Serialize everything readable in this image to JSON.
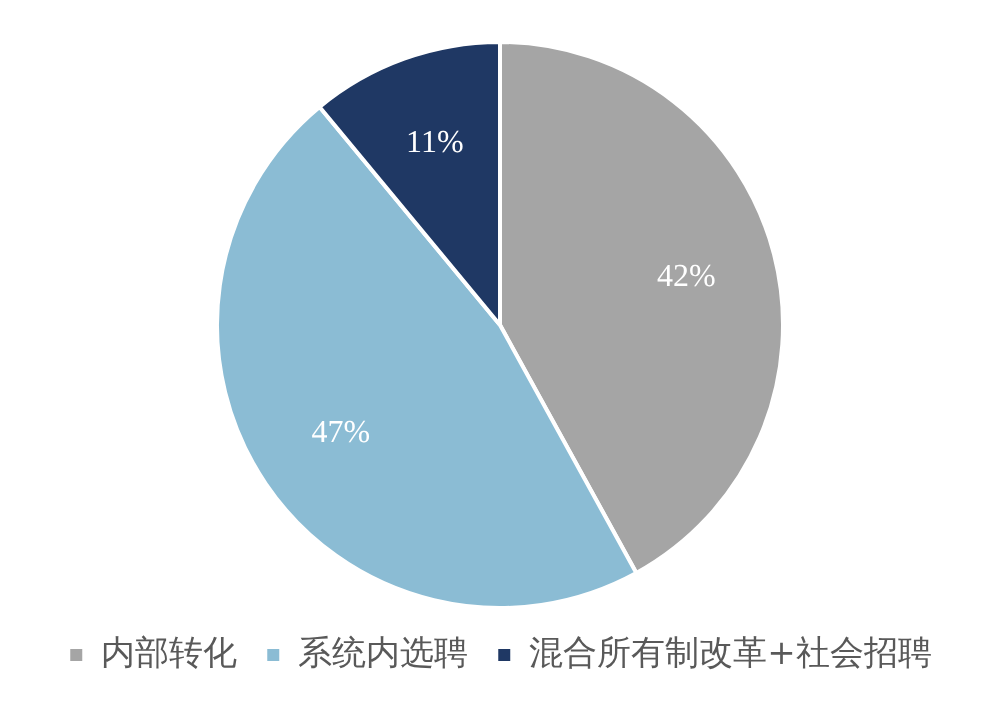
{
  "chart_data": {
    "type": "pie",
    "categories": [
      "内部转化",
      "系统内选聘",
      "混合所有制改革+社会招聘"
    ],
    "values": [
      42,
      47,
      11
    ],
    "colors": [
      "#a5a5a5",
      "#8bbcd4",
      "#1f3864"
    ],
    "value_labels": [
      "42%",
      "47%",
      "11%"
    ],
    "legend": "bottom"
  }
}
